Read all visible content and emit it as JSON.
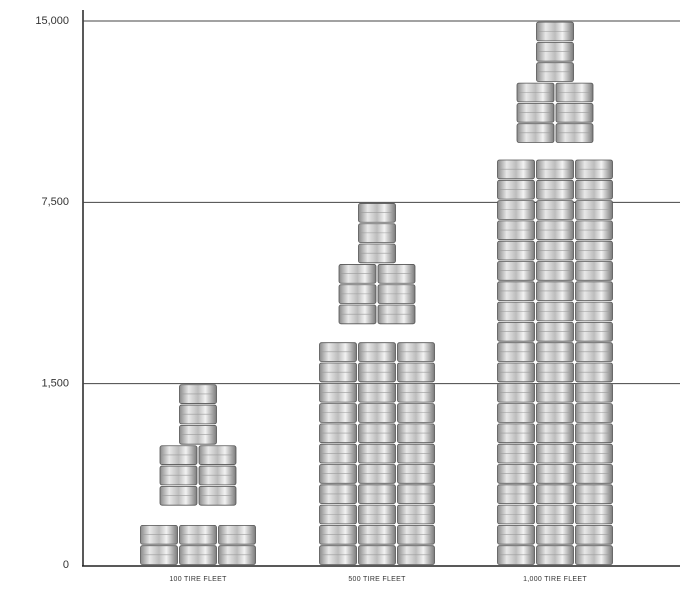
{
  "chart_data": {
    "type": "pictograph",
    "categories": [
      "100 TIRE FLEET",
      "500 TIRE FLEET",
      "1,000 TIRE FLEET"
    ],
    "values": [
      1500,
      7500,
      15000
    ],
    "ylim": [
      0,
      15000
    ],
    "yticks": [
      0,
      {
        "value": 1500,
        "label": "1,500"
      },
      {
        "value": 7500,
        "label": "7,500"
      },
      {
        "value": 15000,
        "label": "15,000"
      }
    ],
    "grid": true,
    "color": "#c8c8c8"
  }
}
